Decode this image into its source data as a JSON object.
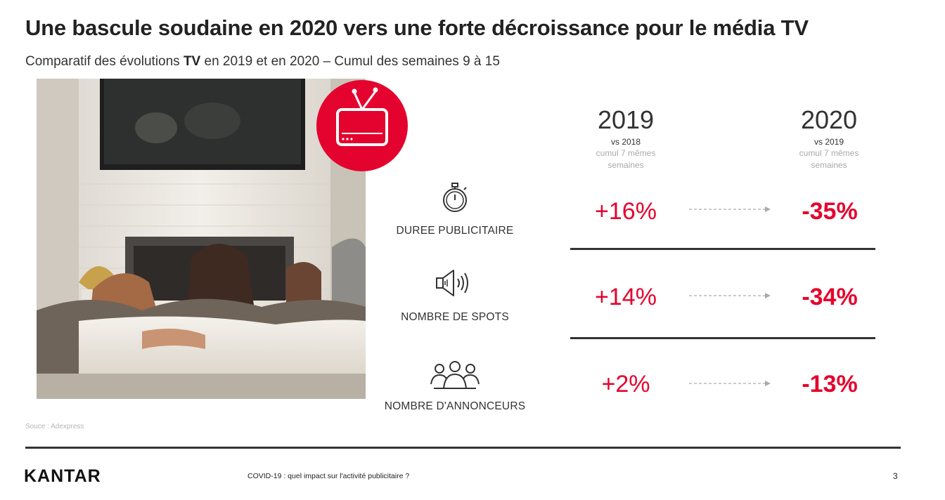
{
  "header": {
    "title": "Une bascule soudaine en 2020 vers une forte décroissance pour le média TV",
    "subtitle_pre": "Comparatif des évolutions ",
    "subtitle_bold": "TV",
    "subtitle_post": " en 2019 et en 2020 – Cumul des semaines 9 à 15"
  },
  "columns": {
    "y2019": {
      "year": "2019",
      "vs": "vs  2018",
      "cumul_line1": "cumul 7 mêmes",
      "cumul_line2": "semaines"
    },
    "y2020": {
      "year": "2020",
      "vs": "vs 2019",
      "cumul_line1": "cumul 7 mêmes",
      "cumul_line2": "semaines"
    }
  },
  "metrics": [
    {
      "icon": "stopwatch-icon",
      "label": "DUREE PUBLICITAIRE",
      "v2019": "+16%",
      "v2020": "-35%"
    },
    {
      "icon": "speaker-icon",
      "label": "NOMBRE DE SPOTS",
      "v2019": "+14%",
      "v2020": "-34%"
    },
    {
      "icon": "people-group-icon",
      "label": "NOMBRE D'ANNONCEURS",
      "v2019": "+2%",
      "v2020": "-13%"
    }
  ],
  "photo": {
    "subject": "family-watching-tv-photo",
    "badge_icon": "tv-icon"
  },
  "colors": {
    "accent": "#e4032e",
    "text": "#222222",
    "muted": "#aaaaaa",
    "rule": "#333333"
  },
  "footer": {
    "source": "Souce : Adexpress",
    "brand": "KANTAR",
    "caption": "COVID-19 : quel impact sur l'activité publicitaire ?",
    "page": "3"
  }
}
